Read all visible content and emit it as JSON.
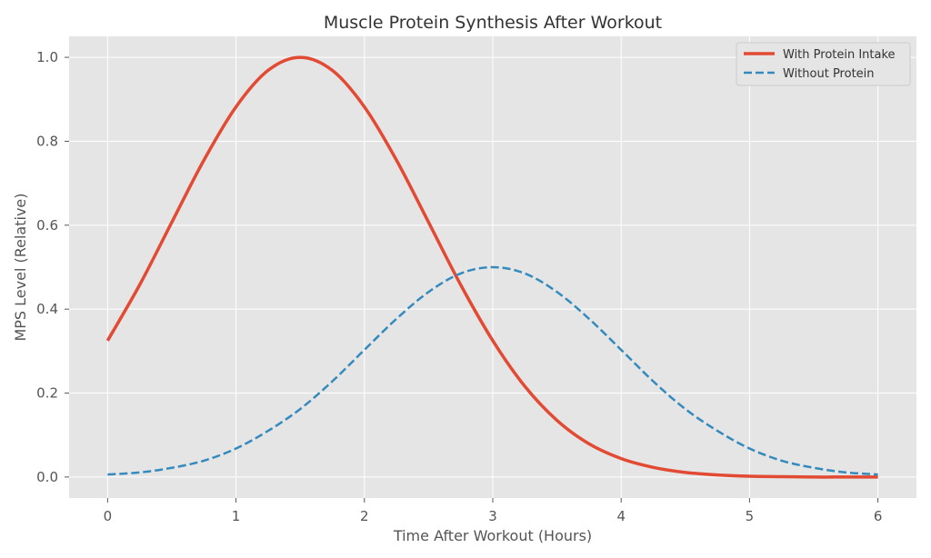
{
  "chart_data": {
    "type": "line",
    "title": "Muscle Protein Synthesis After Workout",
    "xlabel": "Time After Workout (Hours)",
    "ylabel": "MPS Level (Relative)",
    "xlim": [
      -0.3,
      6.3
    ],
    "ylim": [
      -0.05,
      1.05
    ],
    "xticks": [
      0,
      1,
      2,
      3,
      4,
      5,
      6
    ],
    "yticks": [
      "0.0",
      "0.2",
      "0.4",
      "0.6",
      "0.8",
      "1.0"
    ],
    "grid": true,
    "legend": "top-right",
    "x": [
      0,
      0.25,
      0.5,
      0.75,
      1,
      1.25,
      1.5,
      1.75,
      2,
      2.25,
      2.5,
      2.75,
      3,
      3.25,
      3.5,
      3.75,
      4,
      4.25,
      4.5,
      4.75,
      5,
      5.25,
      5.5,
      5.75,
      6
    ],
    "series": [
      {
        "name": "With Protein Intake",
        "color": "#E24A33",
        "style": "solid",
        "values": [
          0.325,
          0.458,
          0.607,
          0.755,
          0.882,
          0.969,
          1.0,
          0.969,
          0.882,
          0.755,
          0.607,
          0.458,
          0.325,
          0.216,
          0.135,
          0.079,
          0.044,
          0.023,
          0.011,
          0.005,
          0.002,
          0.001,
          0.0,
          0.0,
          0.0
        ]
      },
      {
        "name": "Without Protein",
        "color": "#348ABD",
        "style": "dashed",
        "values": [
          0.006,
          0.011,
          0.022,
          0.039,
          0.068,
          0.11,
          0.162,
          0.228,
          0.303,
          0.377,
          0.441,
          0.485,
          0.5,
          0.485,
          0.441,
          0.377,
          0.303,
          0.228,
          0.162,
          0.11,
          0.068,
          0.039,
          0.022,
          0.011,
          0.006
        ]
      }
    ]
  }
}
